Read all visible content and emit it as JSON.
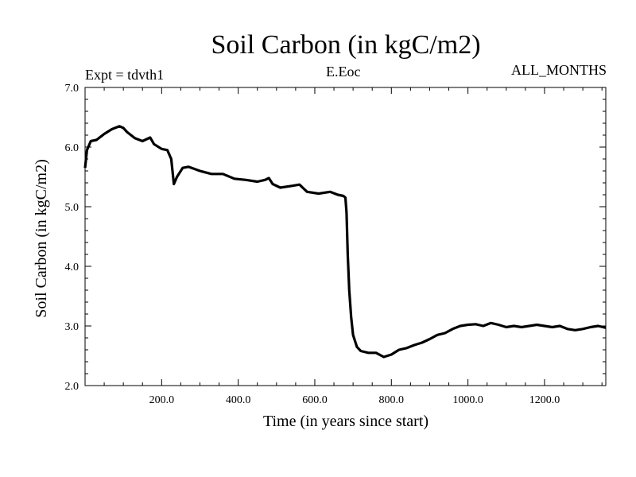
{
  "header": {
    "title": "Soil Carbon (in kgC/m2)",
    "left_label": "Expt = tdvth1",
    "center_label": "E.Eoc",
    "right_label": "ALL_MONTHS"
  },
  "chart_data": {
    "type": "line",
    "title": "Soil Carbon (in kgC/m2)",
    "xlabel": "Time (in years since start)",
    "ylabel": "Soil Carbon (in kgC/m2)",
    "xlim": [
      0,
      1360
    ],
    "ylim": [
      2.0,
      7.0
    ],
    "x_ticks": [
      200,
      400,
      600,
      800,
      1000,
      1200
    ],
    "x_tick_labels": [
      "200.0",
      "400.0",
      "600.0",
      "800.0",
      "1000.0",
      "1200.0"
    ],
    "y_ticks": [
      2,
      3,
      4,
      5,
      6,
      7
    ],
    "y_tick_labels": [
      "2.0",
      "3.0",
      "4.0",
      "5.0",
      "6.0",
      "7.0"
    ],
    "grid": false,
    "line_color": "#000000",
    "series": [
      {
        "x": [
          0,
          5,
          15,
          30,
          50,
          70,
          90,
          100,
          110,
          130,
          150,
          170,
          180,
          200,
          215,
          225,
          232,
          240,
          255,
          270,
          300,
          330,
          360,
          390,
          420,
          450,
          470,
          480,
          490,
          510,
          540,
          560,
          580,
          610,
          640,
          660,
          675,
          680,
          683,
          686,
          690,
          695,
          700,
          710,
          720,
          740,
          760,
          780,
          800,
          820,
          840,
          860,
          880,
          900,
          920,
          940,
          960,
          980,
          1000,
          1020,
          1040,
          1060,
          1080,
          1100,
          1120,
          1140,
          1160,
          1180,
          1200,
          1220,
          1240,
          1260,
          1280,
          1300,
          1320,
          1340,
          1360
        ],
        "y": [
          5.65,
          5.95,
          6.1,
          6.12,
          6.22,
          6.3,
          6.35,
          6.32,
          6.25,
          6.15,
          6.1,
          6.16,
          6.05,
          5.97,
          5.95,
          5.8,
          5.38,
          5.5,
          5.65,
          5.67,
          5.6,
          5.55,
          5.55,
          5.47,
          5.45,
          5.42,
          5.45,
          5.48,
          5.38,
          5.32,
          5.35,
          5.37,
          5.25,
          5.22,
          5.25,
          5.2,
          5.18,
          5.15,
          4.9,
          4.2,
          3.6,
          3.15,
          2.85,
          2.65,
          2.58,
          2.55,
          2.55,
          2.48,
          2.52,
          2.6,
          2.63,
          2.68,
          2.72,
          2.78,
          2.85,
          2.88,
          2.95,
          3.0,
          3.02,
          3.03,
          3.0,
          3.05,
          3.02,
          2.98,
          3.0,
          2.98,
          3.0,
          3.02,
          3.0,
          2.98,
          3.0,
          2.95,
          2.93,
          2.95,
          2.98,
          3.0,
          2.97
        ]
      }
    ]
  }
}
